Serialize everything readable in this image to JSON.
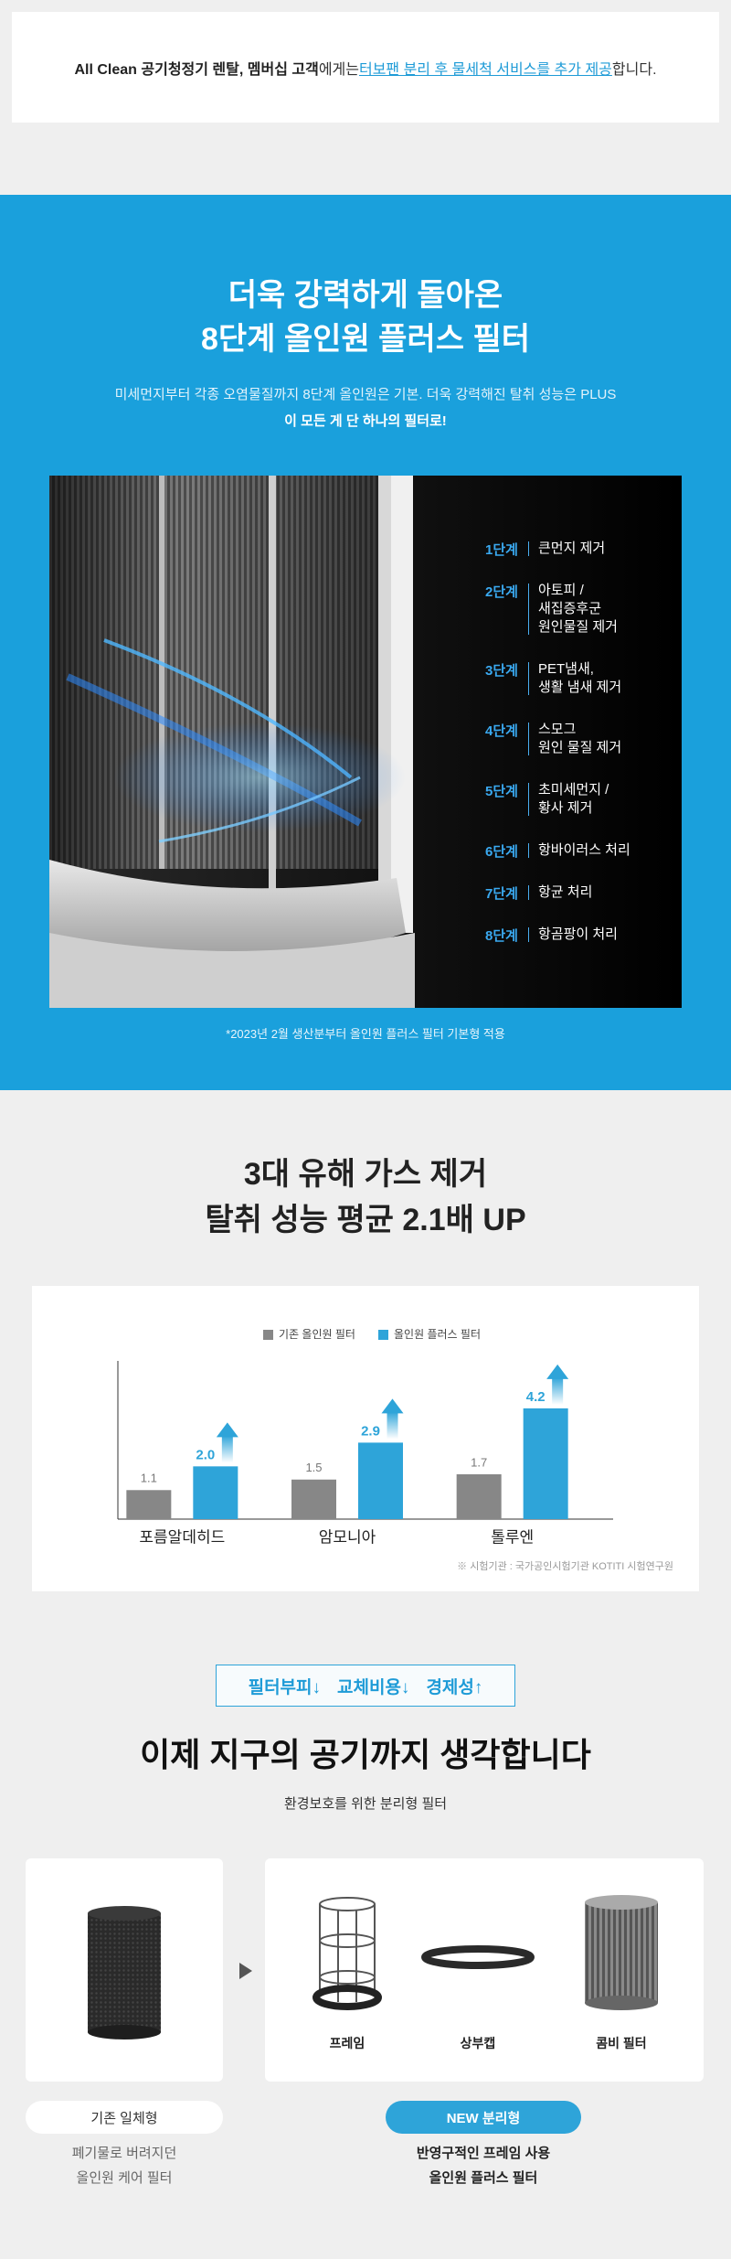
{
  "notice": {
    "parts": [
      "All Clean 공기청정기 렌탈, 멤버십 고객",
      "에게는 ",
      "터보팬 분리 후 물세척 서비스를 추가 제공",
      "합니다."
    ]
  },
  "hero": {
    "title_lines": [
      "더욱 강력하게 돌아온",
      "8단계 올인원 플러스 필터"
    ],
    "subtitle_lines": [
      "미세먼지부터 각종 오염물질까지 8단계 올인원은 기본. 더욱 강력해진 탈취 성능은 PLUS",
      "이 모든 게 단 하나의 필터로!"
    ],
    "steps": [
      {
        "step": "1단계",
        "lines": [
          "큰먼지 제거"
        ]
      },
      {
        "step": "2단계",
        "lines": [
          "아토피 /",
          "새집증후군",
          "원인물질 제거"
        ]
      },
      {
        "step": "3단계",
        "lines": [
          "PET냄새,",
          "생활 냄새 제거"
        ]
      },
      {
        "step": "4단계",
        "lines": [
          "스모그",
          "원인 물질 제거"
        ]
      },
      {
        "step": "5단계",
        "lines": [
          "초미세먼지 /",
          "황사 제거"
        ]
      },
      {
        "step": "6단계",
        "lines": [
          "항바이러스 처리"
        ]
      },
      {
        "step": "7단계",
        "lines": [
          "항균 처리"
        ]
      },
      {
        "step": "8단계",
        "lines": [
          "항곰팡이 처리"
        ]
      }
    ],
    "footnote": "*2023년 2월 생산분부터 올인원 플러스 필터 기본형 적용"
  },
  "chart_data": {
    "type": "bar",
    "title_lines": [
      "3대 유해 가스 제거",
      "탈취 성능 평균 2.1배 UP"
    ],
    "categories": [
      "포름알데히드",
      "암모니아",
      "톨루엔"
    ],
    "series": [
      {
        "name": "기존 올인원 필터",
        "color": "#878787",
        "values": [
          1.1,
          1.5,
          1.7
        ]
      },
      {
        "name": "올인원 플러스 필터",
        "color": "#2ea4d9",
        "values": [
          2.0,
          2.9,
          4.2
        ],
        "value_labels": [
          "2.0",
          "2.9",
          "4.2"
        ]
      }
    ],
    "ylim": [
      0,
      6
    ],
    "source": "※ 시험기관 : 국가공인시험기관 KOTITI 시험연구원"
  },
  "eco": {
    "badge": [
      "필터부피↓",
      "교체비용↓",
      "경제성↑"
    ],
    "title": "이제 지구의 공기까지 생각합니다",
    "subtitle": "환경보호를 위한 분리형 필터",
    "parts": [
      "프레임",
      "상부캡",
      "콤비 필터"
    ],
    "old": {
      "label": "기존 일체형",
      "lines": [
        "폐기물로 버려지던",
        "올인원 케어 필터"
      ]
    },
    "new": {
      "label": "NEW 분리형",
      "lines": [
        "반영구적인 프레임 사용",
        "올인원 플러스 필터"
      ]
    }
  }
}
